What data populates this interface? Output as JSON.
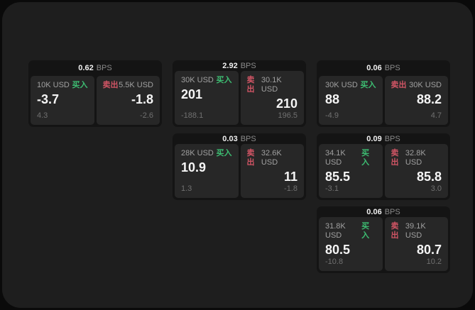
{
  "labels": {
    "buy": "买入",
    "sell": "卖出",
    "bps_unit": "BPS"
  },
  "colors": {
    "buy": "#3dbd72",
    "sell": "#d25565",
    "panel_bg": "#1e1e1e",
    "card_bg": "#141414",
    "pane_bg": "#272727"
  },
  "cards": [
    {
      "bps": "0.62",
      "col": 1,
      "row": 1,
      "buy": {
        "amount": "10K USD",
        "price": "-3.7",
        "delta": "4.3"
      },
      "sell": {
        "amount": "5.5K USD",
        "price": "-1.8",
        "delta": "-2.6"
      }
    },
    {
      "bps": "2.92",
      "col": 2,
      "row": 1,
      "buy": {
        "amount": "30K USD",
        "price": "201",
        "delta": "-188.1"
      },
      "sell": {
        "amount": "30.1K USD",
        "price": "210",
        "delta": "196.5"
      }
    },
    {
      "bps": "0.06",
      "col": 3,
      "row": 1,
      "buy": {
        "amount": "30K USD",
        "price": "88",
        "delta": "-4.9"
      },
      "sell": {
        "amount": "30K USD",
        "price": "88.2",
        "delta": "4.7"
      }
    },
    {
      "bps": "0.03",
      "col": 2,
      "row": 2,
      "buy": {
        "amount": "28K USD",
        "price": "10.9",
        "delta": "1.3"
      },
      "sell": {
        "amount": "32.6K USD",
        "price": "11",
        "delta": "-1.8"
      }
    },
    {
      "bps": "0.09",
      "col": 3,
      "row": 2,
      "buy": {
        "amount": "34.1K USD",
        "price": "85.5",
        "delta": "-3.1"
      },
      "sell": {
        "amount": "32.8K USD",
        "price": "85.8",
        "delta": "3.0"
      }
    },
    {
      "bps": "0.06",
      "col": 3,
      "row": 3,
      "buy": {
        "amount": "31.8K USD",
        "price": "80.5",
        "delta": "-10.8"
      },
      "sell": {
        "amount": "39.1K USD",
        "price": "80.7",
        "delta": "10.2"
      }
    }
  ]
}
